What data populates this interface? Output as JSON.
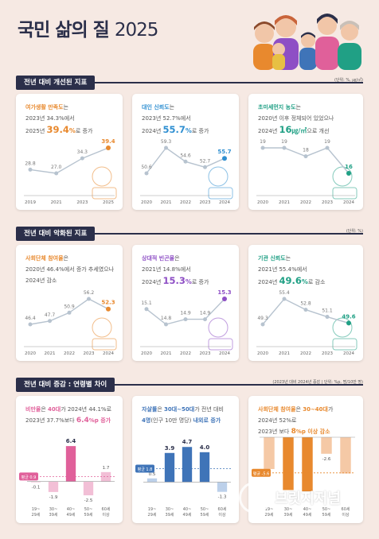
{
  "header": {
    "title_main": "국민 삶의 질",
    "title_year": "2025"
  },
  "logo": {
    "mark": "B",
    "text": "브릿지저널"
  },
  "sections": [
    {
      "label": "전년 대비 개선된 지표",
      "unit": "(단위: %, ㎍/㎥)"
    },
    {
      "label": "전년 대비 악화된 지표",
      "unit": "(단위: %)"
    },
    {
      "label": "전년 대비 증감 : 연령별 차이",
      "unit": "(2023년 대비 2024년 증감 | 단위: %p, 명/10만 명)"
    }
  ],
  "cards": [
    {
      "id": "leisure",
      "color": "#e8892e",
      "lines": [
        [
          "여가생활 만족도",
          "는"
        ],
        [
          "2023년 34.3%에서"
        ],
        [
          "2025년 ",
          "39.4",
          "%",
          "로 증가"
        ]
      ],
      "chart_data": {
        "type": "line",
        "x": [
          "2019",
          "2021",
          "2023",
          "2025"
        ],
        "values": [
          28.8,
          27.0,
          34.3,
          39.4
        ],
        "labels": [
          "28.8",
          "27.0",
          "34.3",
          "39.4"
        ]
      }
    },
    {
      "id": "trust_gov",
      "color": "#2f8fd1",
      "lines": [
        [
          "대인 신뢰도",
          "는"
        ],
        [
          "2023년 52.7%에서"
        ],
        [
          "2024년 ",
          "55.7",
          "%",
          "로 증가"
        ]
      ],
      "chart_data": {
        "type": "line",
        "x": [
          "2020",
          "2021",
          "2022",
          "2023",
          "2024"
        ],
        "values": [
          50.6,
          59.3,
          54.6,
          52.7,
          55.7
        ],
        "labels": [
          "50.6",
          "59.3",
          "54.6",
          "52.7",
          "55.7"
        ]
      }
    },
    {
      "id": "dust",
      "color": "#20a085",
      "lines": [
        [
          "초미세먼지 농도",
          "는"
        ],
        [
          "2020년 이후 정체되어 있었으나"
        ],
        [
          "2024년 ",
          "16",
          "㎍/㎥",
          "으로 개선"
        ]
      ],
      "chart_data": {
        "type": "line",
        "x": [
          "2020",
          "2021",
          "2022",
          "2023",
          "2024"
        ],
        "values": [
          19,
          19,
          18,
          19,
          16
        ],
        "labels": [
          "19",
          "19",
          "18",
          "19",
          "16"
        ]
      }
    },
    {
      "id": "social",
      "color": "#e8892e",
      "lines": [
        [
          "사회단체 참여율",
          "은"
        ],
        [
          "2020년 46.4%에서 증가 추세였으나"
        ],
        [
          "2024년 감소"
        ]
      ],
      "chart_data": {
        "type": "line",
        "x": [
          "2020",
          "2021",
          "2022",
          "2023",
          "2024"
        ],
        "values": [
          46.4,
          47.7,
          50.9,
          56.2,
          52.3
        ],
        "labels": [
          "46.4",
          "47.7",
          "50.9",
          "56.2",
          "52.3"
        ]
      }
    },
    {
      "id": "poverty",
      "color": "#8e4fc5",
      "lines": [
        [
          "상대적 빈곤율",
          "은"
        ],
        [
          "2021년 14.8%에서"
        ],
        [
          "2024년 ",
          "15.3",
          "%",
          "로 증가"
        ]
      ],
      "chart_data": {
        "type": "line",
        "x": [
          "2020",
          "2021",
          "2022",
          "2023",
          "2024"
        ],
        "values": [
          15.1,
          14.8,
          14.9,
          14.9,
          15.3
        ],
        "labels": [
          "15.1",
          "14.8",
          "14.9",
          "14.9",
          "15.3"
        ]
      }
    },
    {
      "id": "institution",
      "color": "#20a085",
      "lines": [
        [
          "기관 신뢰도",
          "는"
        ],
        [
          "2021년 55.4%에서"
        ],
        [
          "2024년 ",
          "49.6",
          "%",
          "로 감소"
        ]
      ],
      "chart_data": {
        "type": "line",
        "x": [
          "2020",
          "2021",
          "2022",
          "2023",
          "2024"
        ],
        "values": [
          49.3,
          55.4,
          52.8,
          51.1,
          49.6
        ],
        "labels": [
          "49.3",
          "55.4",
          "52.8",
          "51.1",
          "49.6"
        ]
      }
    },
    {
      "id": "obesity",
      "color": "#e0609a",
      "lines": [
        [
          "비만율",
          "은 ",
          "40대",
          "가 2024년 44.1%로"
        ],
        [
          "2023년 37.7%보다 ",
          "6.4",
          "%p 증가"
        ]
      ],
      "chart_data": {
        "type": "bar",
        "categories": [
          [
            "19~",
            "29세"
          ],
          [
            "30~",
            "39세"
          ],
          [
            "40~",
            "49세"
          ],
          [
            "50~",
            "59세"
          ],
          [
            "60세",
            "이상"
          ]
        ],
        "values": [
          -0.1,
          -1.9,
          6.4,
          -2.5,
          1.7
        ],
        "labels": [
          "-0.1",
          "-1.9",
          "6.4",
          "-2.5",
          "1.7"
        ],
        "avg": 0.9,
        "avg_label": "평균 0.9",
        "ylim": [
          -3.5,
          8
        ]
      }
    },
    {
      "id": "suicide",
      "color": "#3f74b8",
      "lines": [
        [
          "자살률",
          "은 ",
          "30대~50대",
          "가 전년 대비"
        ],
        [
          "4명",
          "(인구 10만 명당) ",
          "내외로 증가"
        ]
      ],
      "chart_data": {
        "type": "bar",
        "categories": [
          [
            "19~",
            "29세"
          ],
          [
            "30~",
            "39세"
          ],
          [
            "40~",
            "49세"
          ],
          [
            "50~",
            "59세"
          ],
          [
            "60세",
            "이상"
          ]
        ],
        "values": [
          0.5,
          3.9,
          4.7,
          4.0,
          -1.3
        ],
        "labels": [
          "0.5",
          "3.9",
          "4.7",
          "4.0",
          "-1.3"
        ],
        "avg": 1.8,
        "avg_label": "평균 1.8",
        "ylim": [
          -2.5,
          6
        ]
      }
    },
    {
      "id": "social_age",
      "color": "#e8892e",
      "lines": [
        [
          "사회단체 참여율",
          "은 ",
          "30~40대",
          "가"
        ],
        [
          "2024년 52%로"
        ],
        [
          "2023년 보다 ",
          "8",
          "%p 이상 감소"
        ]
      ],
      "chart_data": {
        "type": "bar",
        "categories": [
          [
            "19~",
            "29세"
          ],
          [
            "30~",
            "39세"
          ],
          [
            "40~",
            "49세"
          ],
          [
            "50~",
            "59세"
          ],
          [
            "60세",
            "이상"
          ]
        ],
        "values": [
          -5.0,
          -8.3,
          -8.5,
          -2.6,
          -5.7
        ],
        "labels": [
          "-5.0",
          "-8.3",
          "-8.5",
          "-2.6",
          "-5.7"
        ],
        "avg": -5.6,
        "avg_label": "평균 -5.6",
        "ylim": [
          -10,
          0
        ]
      }
    }
  ]
}
